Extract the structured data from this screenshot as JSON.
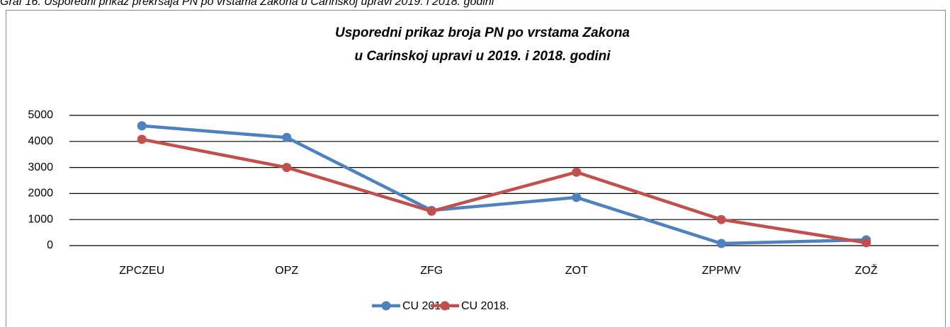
{
  "caption": "Graf 16. Usporedni prikaz prekršaja PN po vrstama Zakona u Carinskoj upravi 2019. i 2018. godini",
  "chart_data": {
    "type": "line",
    "title": [
      "Usporedni prikaz broja PN po vrstama Zakona",
      "u Carinskoj upravi u 2019. i 2018. godini"
    ],
    "categories": [
      "ZPCZEU",
      "OPZ",
      "ZFG",
      "ZOT",
      "ZPPMV",
      "ZOŽ"
    ],
    "series": [
      {
        "name": "CU 2019.",
        "color": "#4f81bd",
        "values": [
          4600,
          4150,
          1350,
          1850,
          80,
          220
        ]
      },
      {
        "name": "CU 2018.",
        "color": "#c0504d",
        "values": [
          4080,
          3000,
          1320,
          2820,
          1000,
          110
        ]
      }
    ],
    "ylim": [
      0,
      5000
    ],
    "yticks": [
      0,
      1000,
      2000,
      3000,
      4000,
      5000
    ],
    "grid": true,
    "legend": "bottom"
  }
}
